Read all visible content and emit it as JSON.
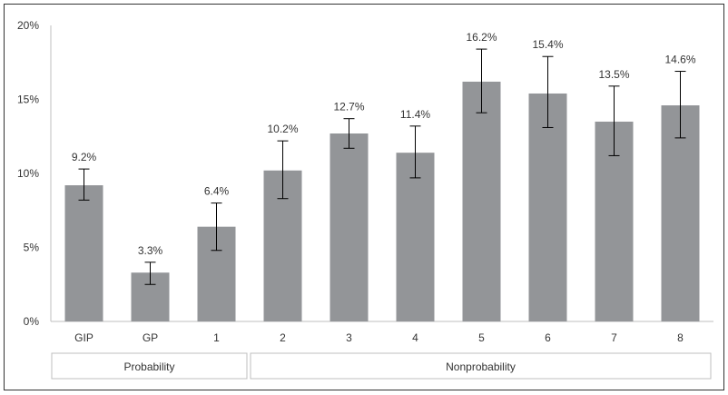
{
  "chart_data": {
    "type": "bar",
    "title": "",
    "xlabel": "",
    "ylabel": "",
    "ylim": [
      0,
      20
    ],
    "yticks": [
      0,
      5,
      10,
      15,
      20
    ],
    "ytick_labels": [
      "0%",
      "5%",
      "10%",
      "15%",
      "20%"
    ],
    "categories": [
      "GIP",
      "GP",
      "1",
      "2",
      "3",
      "4",
      "5",
      "6",
      "7",
      "8"
    ],
    "values": [
      9.2,
      3.3,
      6.4,
      10.2,
      12.7,
      11.4,
      16.2,
      15.4,
      13.5,
      14.6
    ],
    "data_labels": [
      "9.2%",
      "3.3%",
      "6.4%",
      "10.2%",
      "12.7%",
      "11.4%",
      "16.2%",
      "15.4%",
      "13.5%",
      "14.6%"
    ],
    "error_low": [
      8.2,
      2.5,
      4.8,
      8.3,
      11.7,
      9.7,
      14.1,
      13.1,
      11.2,
      12.4
    ],
    "error_high": [
      10.3,
      4.0,
      8.0,
      12.2,
      13.7,
      13.2,
      18.4,
      17.9,
      15.9,
      16.9
    ],
    "groups": [
      {
        "label": "Probability",
        "categories": [
          "GIP",
          "GP",
          "1"
        ]
      },
      {
        "label": "Nonprobability",
        "categories": [
          "2",
          "3",
          "4",
          "5",
          "6",
          "7",
          "8"
        ]
      }
    ],
    "grid": false,
    "legend": "none",
    "bar_color": "#939598"
  }
}
